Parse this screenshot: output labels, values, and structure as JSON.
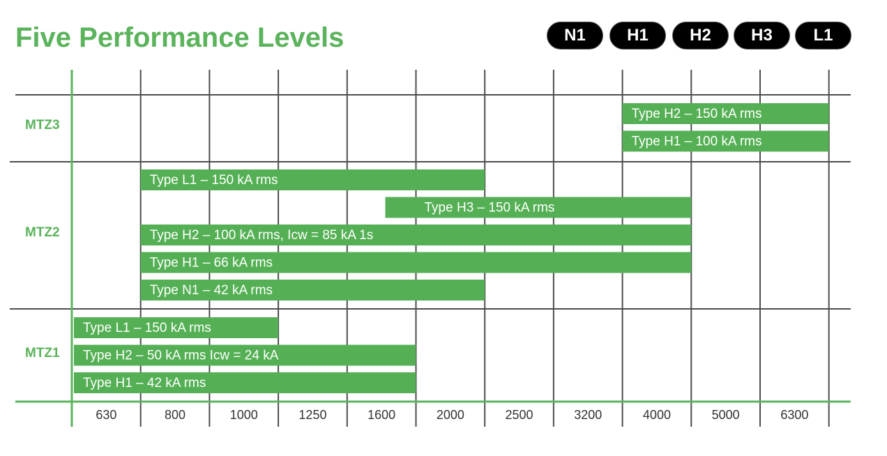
{
  "title": "Five Performance Levels",
  "performance_levels": [
    "N1",
    "H1",
    "H2",
    "H3",
    "L1"
  ],
  "colors": {
    "accent": "#5bb35c",
    "bar": "#55b055",
    "grid": "#4d4d4d",
    "pill": "#000000"
  },
  "chart_data": {
    "type": "range-bar",
    "title": "Five Performance Levels",
    "xlabel": "",
    "ylabel": "",
    "x_categories": [
      "630",
      "800",
      "1000",
      "1250",
      "1600",
      "2000",
      "2500",
      "3200",
      "4000",
      "5000",
      "6300"
    ],
    "groups": [
      {
        "label": "MTZ3",
        "bars": [
          {
            "label": "Type H2 – 150 kA rms",
            "start": "4000",
            "end": "6300"
          },
          {
            "label": "Type H1 – 100 kA rms",
            "start": "4000",
            "end": "6300"
          }
        ]
      },
      {
        "label": "MTZ2",
        "bars": [
          {
            "label": "Type L1 – 150 kA rms",
            "start": "800",
            "end": "2000"
          },
          {
            "label": "Type H3 – 150 kA rms",
            "start": "2000",
            "end": "4000"
          },
          {
            "label": "Type H2 – 100 kA rms, Icw = 85 kA 1s",
            "start": "800",
            "end": "4000"
          },
          {
            "label": "Type H1 – 66 kA rms",
            "start": "800",
            "end": "4000"
          },
          {
            "label": "Type N1 – 42 kA rms",
            "start": "800",
            "end": "2000"
          }
        ]
      },
      {
        "label": "MTZ1",
        "bars": [
          {
            "label": "Type L1 – 150 kA rms",
            "start": "630",
            "end": "1000"
          },
          {
            "label": "Type H2 – 50 kA rms Icw = 24 kA",
            "start": "630",
            "end": "1600"
          },
          {
            "label": "Type H1 – 42 kA rms",
            "start": "630",
            "end": "1600"
          }
        ]
      }
    ]
  }
}
